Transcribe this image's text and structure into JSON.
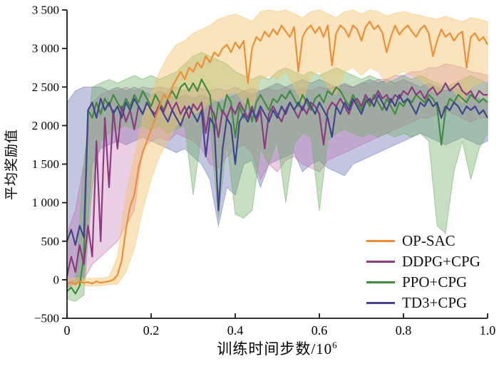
{
  "figure": {
    "background": "#ffffff",
    "ylabel": "平均奖励值",
    "xlabel_base": "训练时间步数/10",
    "xlabel_exp": "6"
  },
  "chart_data": {
    "type": "line",
    "title": "",
    "xlabel": "训练时间步数/10^6",
    "ylabel": "平均奖励值",
    "xlim": [
      0,
      1.0
    ],
    "ylim": [
      -500,
      3500
    ],
    "grid": false,
    "legend_position": "lower right",
    "x_tick_values": [
      0,
      0.2,
      0.4,
      0.6,
      0.8,
      1.0
    ],
    "x_tick_labels": [
      "0",
      "0.2",
      "0.4",
      "0.6",
      "0.8",
      "1.0"
    ],
    "y_tick_values": [
      -500,
      0,
      500,
      1000,
      1500,
      2000,
      2500,
      3000,
      3500
    ],
    "y_tick_labels": [
      "−500",
      "0",
      "500",
      "1 000",
      "1 500",
      "2 000",
      "2 500",
      "3 000",
      "3 500"
    ],
    "axis_color": "#1a1a1a",
    "series": [
      {
        "name": "OP-SAC",
        "color": "#ED8E35",
        "band_color": "#F3C46E",
        "band_opacity": 0.45,
        "x_step": 0.01,
        "mean": [
          -50,
          -30,
          -60,
          -20,
          -40,
          -30,
          -50,
          -20,
          -40,
          -30,
          -20,
          0,
          60,
          250,
          650,
          950,
          1100,
          1450,
          1650,
          1800,
          1950,
          2100,
          2250,
          2400,
          2350,
          2500,
          2600,
          2700,
          2600,
          2750,
          2700,
          2820,
          2750,
          2900,
          2820,
          2950,
          2900,
          3000,
          3050,
          2950,
          3080,
          3000,
          3100,
          2550,
          3000,
          3150,
          3100,
          3220,
          3150,
          3250,
          3180,
          3300,
          3220,
          3150,
          3280,
          2700,
          3150,
          3250,
          3300,
          3200,
          3280,
          3150,
          3300,
          2780,
          3200,
          3300,
          3250,
          3150,
          3300,
          3250,
          3100,
          3280,
          3350,
          3250,
          3300,
          3200,
          2950,
          3150,
          3300,
          3180,
          3250,
          3300,
          3220,
          3150,
          3250,
          3300,
          3200,
          2900,
          3100,
          3250,
          3150,
          3200,
          3100,
          3180,
          3220,
          2750,
          3150,
          3200,
          3100,
          3150,
          3050
        ],
        "band": {
          "x_step": 0.02,
          "lower": [
            -80,
            -80,
            -80,
            -80,
            -80,
            -60,
            -60,
            100,
            400,
            900,
            1300,
            1600,
            1800,
            2000,
            2100,
            2150,
            2200,
            2300,
            2350,
            2400,
            2450,
            2300,
            2200,
            2600,
            2650,
            2600,
            2700,
            2500,
            2300,
            2650,
            2700,
            2500,
            2400,
            2700,
            2750,
            2650,
            2750,
            2700,
            2550,
            2650,
            2700,
            2650,
            2600,
            2500,
            2400,
            2550,
            2450,
            2300,
            2500,
            2550,
            2600
          ],
          "upper": [
            20,
            20,
            20,
            20,
            20,
            40,
            300,
            1100,
            1600,
            2100,
            2400,
            2700,
            2900,
            3050,
            3100,
            3200,
            3250,
            3300,
            3380,
            3420,
            3450,
            3400,
            3350,
            3480,
            3500,
            3480,
            3500,
            3450,
            3400,
            3480,
            3500,
            3450,
            3400,
            3480,
            3500,
            3450,
            3500,
            3480,
            3420,
            3460,
            3480,
            3450,
            3430,
            3400,
            3380,
            3420,
            3380,
            3350,
            3400,
            3380,
            3350
          ]
        }
      },
      {
        "name": "DDPG+CPG",
        "color": "#8C3B80",
        "band_color": "#C06AAE",
        "band_opacity": 0.33,
        "x_step": 0.01,
        "mean": [
          50,
          300,
          100,
          450,
          200,
          700,
          300,
          1800,
          500,
          2100,
          1200,
          2200,
          1700,
          2250,
          2050,
          2200,
          1950,
          2250,
          2150,
          2300,
          2200,
          2150,
          2280,
          2180,
          2320,
          2200,
          2300,
          2150,
          2250,
          2100,
          2280,
          2200,
          2300,
          1900,
          2250,
          2150,
          1850,
          2200,
          2100,
          2250,
          2150,
          2300,
          2200,
          2100,
          2250,
          2050,
          2200,
          1700,
          2150,
          2250,
          2150,
          2050,
          2200,
          2300,
          2200,
          2100,
          2250,
          2150,
          2300,
          2250,
          2150,
          1750,
          2200,
          2300,
          2250,
          2350,
          2250,
          2150,
          2300,
          2350,
          2250,
          2400,
          2300,
          2350,
          2450,
          2350,
          2400,
          2300,
          2400,
          2350,
          2450,
          2400,
          2500,
          2400,
          2450,
          2350,
          2450,
          2500,
          2400,
          2450,
          2550,
          2450,
          2500,
          2550,
          2450,
          2400,
          2450,
          2350,
          2450,
          2400,
          2400
        ],
        "band": {
          "x_step": 0.02,
          "lower": [
            -100,
            -50,
            0,
            200,
            300,
            400,
            500,
            700,
            900,
            1700,
            1800,
            1850,
            1800,
            1900,
            1850,
            1800,
            1700,
            1500,
            1450,
            1600,
            1700,
            1750,
            1650,
            1300,
            1500,
            1400,
            1550,
            1600,
            1500,
            1450,
            1400,
            1550,
            1600,
            1650,
            1700,
            1750,
            1800,
            1850,
            1900,
            1950,
            2000,
            2050,
            2100,
            2100,
            2150,
            2200,
            2150,
            2100,
            2050,
            2100,
            2100
          ],
          "upper": [
            600,
            900,
            1500,
            2300,
            2400,
            2450,
            2450,
            2500,
            2450,
            2500,
            2480,
            2500,
            2480,
            2500,
            2450,
            2500,
            2480,
            2450,
            2480,
            2450,
            2500,
            2450,
            2480,
            2450,
            2480,
            2450,
            2500,
            2450,
            2480,
            2450,
            2500,
            2480,
            2500,
            2520,
            2500,
            2550,
            2550,
            2600,
            2600,
            2650,
            2650,
            2700,
            2700,
            2750,
            2750,
            2800,
            2780,
            2750,
            2700,
            2680,
            2650
          ]
        }
      },
      {
        "name": "PPO+CPG",
        "color": "#3F8C3C",
        "band_color": "#6FAE62",
        "band_opacity": 0.4,
        "x_step": 0.01,
        "mean": [
          -150,
          -100,
          -180,
          -80,
          300,
          2200,
          2100,
          2300,
          2150,
          2350,
          2250,
          2400,
          2300,
          2200,
          2350,
          2250,
          2400,
          2300,
          2450,
          2350,
          2250,
          2400,
          2300,
          2200,
          2350,
          2450,
          2350,
          2500,
          2550,
          2450,
          2550,
          2450,
          2600,
          2500,
          2400,
          1900,
          2300,
          2150,
          2400,
          2300,
          1850,
          2250,
          2100,
          2350,
          2050,
          2300,
          2400,
          2300,
          2200,
          2350,
          2300,
          2400,
          2350,
          2450,
          2350,
          2250,
          2400,
          2300,
          2200,
          2350,
          2400,
          2300,
          2450,
          2400,
          2500,
          2450,
          2350,
          2250,
          2400,
          2300,
          2200,
          2350,
          2250,
          2400,
          2300,
          2200,
          2350,
          2250,
          2150,
          2300,
          2250,
          2350,
          2300,
          2400,
          2350,
          2300,
          2400,
          2350,
          2250,
          1750,
          2200,
          2350,
          2300,
          2400,
          2350,
          2300,
          2400,
          2350,
          2300,
          2350,
          2300
        ],
        "band": {
          "x_step": 0.02,
          "lower": [
            -250,
            -280,
            -200,
            1200,
            1800,
            1900,
            1950,
            2000,
            1950,
            2000,
            1950,
            2000,
            1900,
            1950,
            2000,
            1100,
            1900,
            2000,
            800,
            1800,
            850,
            800,
            900,
            1700,
            1500,
            1800,
            1000,
            1750,
            1900,
            1850,
            900,
            1800,
            1900,
            1950,
            1900,
            1850,
            1900,
            1850,
            1900,
            1850,
            1900,
            1850,
            1900,
            1800,
            700,
            600,
            1400,
            1800,
            1300,
            1700,
            1900
          ],
          "upper": [
            -50,
            0,
            1500,
            2500,
            2550,
            2600,
            2550,
            2600,
            2650,
            2600,
            2650,
            2600,
            2650,
            2700,
            2800,
            2900,
            2950,
            2900,
            2850,
            2800,
            2700,
            2650,
            2600,
            2650,
            2600,
            2700,
            2750,
            2700,
            2650,
            2700,
            2650,
            2700,
            2750,
            2700,
            2650,
            2600,
            2650,
            2600,
            2550,
            2600,
            2650,
            2600,
            2650,
            2600,
            2550,
            2500,
            2550,
            2600,
            2650,
            2600,
            2550
          ]
        }
      },
      {
        "name": "TD3+CPG",
        "color": "#41458C",
        "band_color": "#6F77B5",
        "band_opacity": 0.42,
        "x_step": 0.01,
        "mean": [
          500,
          650,
          450,
          700,
          550,
          2200,
          2300,
          2100,
          2350,
          2200,
          2300,
          2150,
          2250,
          2100,
          2300,
          2200,
          2350,
          2250,
          2150,
          2300,
          2200,
          2100,
          2250,
          2150,
          2050,
          2200,
          2100,
          2000,
          2150,
          2250,
          2150,
          2050,
          2200,
          1600,
          2100,
          2000,
          900,
          1700,
          2100,
          2000,
          1500,
          2050,
          2150,
          2050,
          2200,
          2100,
          2250,
          2150,
          2050,
          2200,
          2100,
          2250,
          2150,
          2300,
          2200,
          2300,
          2200,
          2350,
          2250,
          2150,
          2300,
          2200,
          2100,
          1850,
          2250,
          2150,
          2300,
          2200,
          2350,
          2250,
          2150,
          2300,
          2350,
          2250,
          2400,
          2300,
          2200,
          2350,
          2250,
          2400,
          2300,
          2350,
          2250,
          2150,
          2300,
          2250,
          2350,
          2250,
          2300,
          2100,
          2250,
          2200,
          2300,
          2250,
          2150,
          2250,
          2200,
          2250,
          2150,
          2200,
          2100
        ],
        "band": {
          "x_step": 0.02,
          "lower": [
            -100,
            -50,
            0,
            1500,
            1700,
            1750,
            1800,
            1750,
            1800,
            1850,
            1800,
            1750,
            1700,
            1650,
            1700,
            1600,
            1500,
            1300,
            700,
            1200,
            1100,
            1500,
            1550,
            1200,
            1500,
            1550,
            1600,
            1650,
            1400,
            1500,
            1550,
            1450,
            1400,
            1350,
            1500,
            1550,
            1600,
            1650,
            1700,
            1750,
            1800,
            1850,
            1900,
            1850,
            1800,
            1750,
            1800,
            1850,
            1800,
            1750,
            1800
          ],
          "upper": [
            2300,
            2450,
            2500,
            2500,
            2500,
            2450,
            2500,
            2450,
            2500,
            2450,
            2400,
            2450,
            2400,
            2350,
            2400,
            2350,
            2400,
            2350,
            2300,
            2350,
            2400,
            2450,
            2400,
            2450,
            2500,
            2550,
            2500,
            2550,
            2600,
            2550,
            2600,
            2550,
            2500,
            2550,
            2500,
            2550,
            2600,
            2550,
            2600,
            2550,
            2600,
            2550,
            2500,
            2550,
            2500,
            2450,
            2500,
            2450,
            2400,
            2350,
            2300
          ]
        }
      }
    ]
  }
}
